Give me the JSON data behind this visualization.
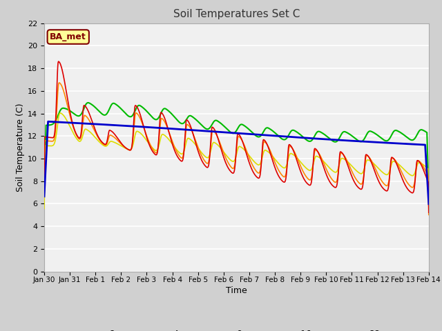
{
  "title": "Soil Temperatures Set C",
  "xlabel": "Time",
  "ylabel": "Soil Temperature (C)",
  "ylim": [
    0,
    22
  ],
  "yticks": [
    0,
    2,
    4,
    6,
    8,
    10,
    12,
    14,
    16,
    18,
    20,
    22
  ],
  "fig_bg_color": "#d0d0d0",
  "plot_bg_color": "#f0f0f0",
  "annotation_text": "BA_met",
  "annotation_bg": "#ffff99",
  "annotation_border": "#800000",
  "series_colors": {
    "-2cm": "#dd0000",
    "-4cm": "#ff8800",
    "-8cm": "#dddd00",
    "-16cm": "#00bb00",
    "-32cm": "#0000cc"
  },
  "series_lw": {
    "-2cm": 1.2,
    "-4cm": 1.2,
    "-8cm": 1.2,
    "-16cm": 1.5,
    "-32cm": 2.0
  },
  "xtick_positions": [
    0,
    1,
    2,
    3,
    4,
    5,
    6,
    7,
    8,
    9,
    10,
    11,
    12,
    13,
    14,
    15
  ],
  "xtick_labels": [
    "Jan 30",
    "Jan 31",
    "Feb 1",
    "Feb 2",
    "Feb 3",
    "Feb 4",
    "Feb 5",
    "Feb 6",
    "Feb 7",
    "Feb 8",
    "Feb 9",
    "Feb 10",
    "Feb 11",
    "Feb 12",
    "Feb 13",
    "Feb 14"
  ]
}
